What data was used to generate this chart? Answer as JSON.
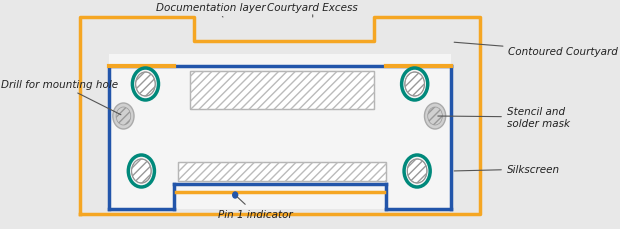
{
  "bg_color": "#e8e8e8",
  "orange": "#F5A623",
  "blue": "#2255AA",
  "teal": "#00897B",
  "gray_hatch": "#cccccc",
  "light_gray": "#f0f0f0",
  "text_color": "#222222",
  "labels": {
    "doc_layer": "Documentation layer",
    "courtyard_excess": "Courtyard Excess",
    "contoured_courtyard": "Contoured Courtyard",
    "drill_hole": "Drill for mounting hole",
    "stencil": "Stencil and\nsolder mask",
    "silkscreen": "Silkscreen",
    "pin1": "Pin 1 indicator"
  }
}
